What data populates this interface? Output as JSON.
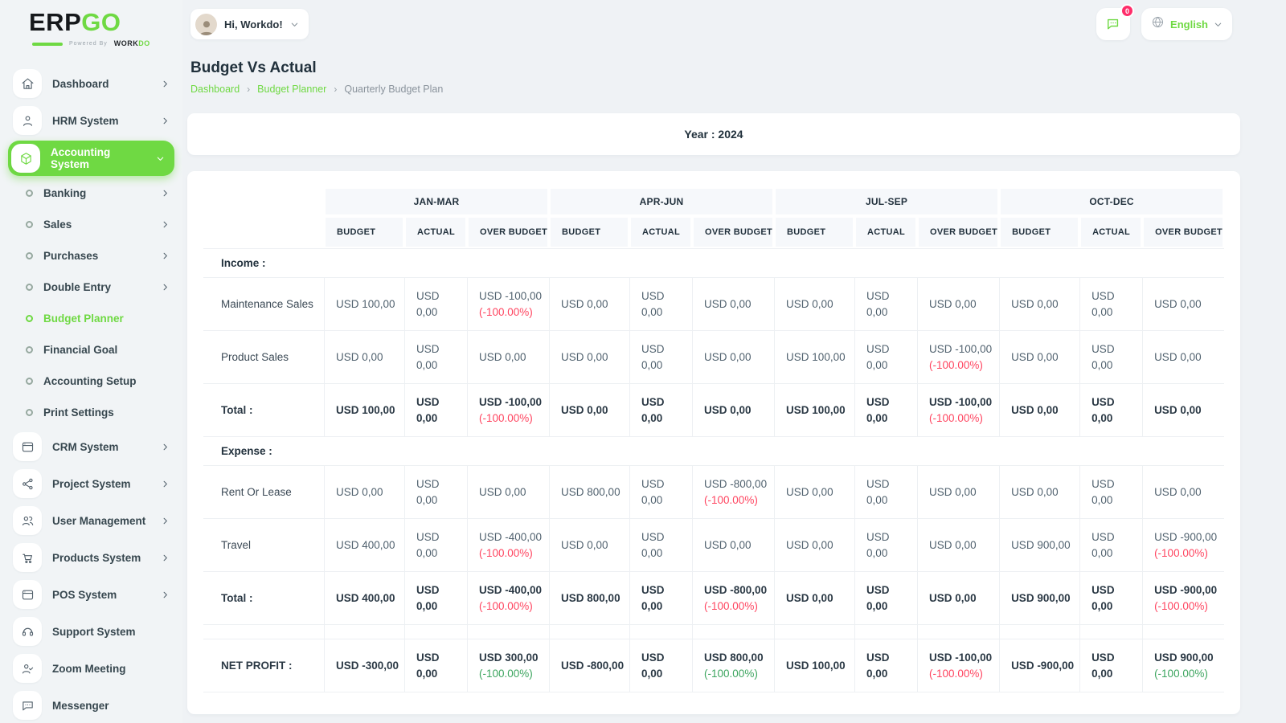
{
  "brand": {
    "logo_left": "ERP",
    "logo_right": "GO",
    "powered_by": "Powered By",
    "workdo_left": "WORK",
    "workdo_right": "DO"
  },
  "topbar": {
    "greeting": "Hi, Workdo!",
    "notification_count": "0",
    "language": "English"
  },
  "page": {
    "title": "Budget Vs Actual",
    "breadcrumb": [
      {
        "label": "Dashboard",
        "link": true
      },
      {
        "label": "Budget Planner",
        "link": true
      },
      {
        "label": "Quarterly Budget Plan",
        "link": false
      }
    ]
  },
  "filter_card": {
    "year_label": "Year : 2024"
  },
  "colors": {
    "accent": "#6fd943",
    "negative": "#ff4560",
    "positive": "#3da55f"
  },
  "sidebar": {
    "items": [
      {
        "label": "Dashboard",
        "icon": "home",
        "chevron": "right"
      },
      {
        "label": "HRM System",
        "icon": "user",
        "chevron": "right"
      },
      {
        "label": "Accounting System",
        "icon": "cube",
        "chevron": "down",
        "active": true
      },
      {
        "label": "Banking",
        "sub": true,
        "chevron": "right"
      },
      {
        "label": "Sales",
        "sub": true,
        "chevron": "right"
      },
      {
        "label": "Purchases",
        "sub": true,
        "chevron": "right"
      },
      {
        "label": "Double Entry",
        "sub": true,
        "chevron": "right"
      },
      {
        "label": "Budget Planner",
        "sub": true,
        "active": true
      },
      {
        "label": "Financial Goal",
        "sub": true
      },
      {
        "label": "Accounting Setup",
        "sub": true
      },
      {
        "label": "Print Settings",
        "sub": true
      },
      {
        "label": "CRM System",
        "icon": "browser",
        "chevron": "right"
      },
      {
        "label": "Project System",
        "icon": "share",
        "chevron": "right"
      },
      {
        "label": "User Management",
        "icon": "users",
        "chevron": "right"
      },
      {
        "label": "Products System",
        "icon": "cart",
        "chevron": "right"
      },
      {
        "label": "POS System",
        "icon": "browser",
        "chevron": "right"
      },
      {
        "label": "Support System",
        "icon": "headset"
      },
      {
        "label": "Zoom Meeting",
        "icon": "usercheck"
      },
      {
        "label": "Messenger",
        "icon": "chat"
      }
    ]
  },
  "budget_table": {
    "quarters": [
      "JAN-MAR",
      "APR-JUN",
      "JUL-SEP",
      "OCT-DEC"
    ],
    "subheaders": [
      "BUDGET",
      "ACTUAL",
      "OVER BUDGET"
    ],
    "sections": [
      {
        "title": "Income :",
        "rows": [
          {
            "label": "Maintenance Sales",
            "bold": false,
            "cells": [
              {
                "v": "USD 100,00"
              },
              {
                "v": "USD 0,00"
              },
              {
                "v": "USD -100,00",
                "pct": "(-100.00%)",
                "pc": "neg"
              },
              {
                "v": "USD 0,00"
              },
              {
                "v": "USD 0,00"
              },
              {
                "v": "USD 0,00"
              },
              {
                "v": "USD 0,00"
              },
              {
                "v": "USD 0,00"
              },
              {
                "v": "USD 0,00"
              },
              {
                "v": "USD 0,00"
              },
              {
                "v": "USD 0,00"
              },
              {
                "v": "USD 0,00"
              }
            ]
          },
          {
            "label": "Product Sales",
            "bold": false,
            "cells": [
              {
                "v": "USD 0,00"
              },
              {
                "v": "USD 0,00"
              },
              {
                "v": "USD 0,00"
              },
              {
                "v": "USD 0,00"
              },
              {
                "v": "USD 0,00"
              },
              {
                "v": "USD 0,00"
              },
              {
                "v": "USD 100,00"
              },
              {
                "v": "USD 0,00"
              },
              {
                "v": "USD -100,00",
                "pct": "(-100.00%)",
                "pc": "neg"
              },
              {
                "v": "USD 0,00"
              },
              {
                "v": "USD 0,00"
              },
              {
                "v": "USD 0,00"
              }
            ]
          },
          {
            "label": "Total :",
            "bold": true,
            "cells": [
              {
                "v": "USD 100,00"
              },
              {
                "v": "USD 0,00"
              },
              {
                "v": "USD -100,00",
                "pct": "(-100.00%)",
                "pc": "neg"
              },
              {
                "v": "USD 0,00"
              },
              {
                "v": "USD 0,00"
              },
              {
                "v": "USD 0,00"
              },
              {
                "v": "USD 100,00"
              },
              {
                "v": "USD 0,00"
              },
              {
                "v": "USD -100,00",
                "pct": "(-100.00%)",
                "pc": "neg"
              },
              {
                "v": "USD 0,00"
              },
              {
                "v": "USD 0,00"
              },
              {
                "v": "USD 0,00"
              }
            ]
          }
        ]
      },
      {
        "title": "Expense :",
        "rows": [
          {
            "label": "Rent Or Lease",
            "bold": false,
            "cells": [
              {
                "v": "USD 0,00"
              },
              {
                "v": "USD 0,00"
              },
              {
                "v": "USD 0,00"
              },
              {
                "v": "USD 800,00"
              },
              {
                "v": "USD 0,00"
              },
              {
                "v": "USD -800,00",
                "pct": "(-100.00%)",
                "pc": "neg"
              },
              {
                "v": "USD 0,00"
              },
              {
                "v": "USD 0,00"
              },
              {
                "v": "USD 0,00"
              },
              {
                "v": "USD 0,00"
              },
              {
                "v": "USD 0,00"
              },
              {
                "v": "USD 0,00"
              }
            ]
          },
          {
            "label": "Travel",
            "bold": false,
            "cells": [
              {
                "v": "USD 400,00"
              },
              {
                "v": "USD 0,00"
              },
              {
                "v": "USD -400,00",
                "pct": "(-100.00%)",
                "pc": "neg"
              },
              {
                "v": "USD 0,00"
              },
              {
                "v": "USD 0,00"
              },
              {
                "v": "USD 0,00"
              },
              {
                "v": "USD 0,00"
              },
              {
                "v": "USD 0,00"
              },
              {
                "v": "USD 0,00"
              },
              {
                "v": "USD 900,00"
              },
              {
                "v": "USD 0,00"
              },
              {
                "v": "USD -900,00",
                "pct": "(-100.00%)",
                "pc": "neg"
              }
            ]
          },
          {
            "label": "Total :",
            "bold": true,
            "cells": [
              {
                "v": "USD 400,00"
              },
              {
                "v": "USD 0,00"
              },
              {
                "v": "USD -400,00",
                "pct": "(-100.00%)",
                "pc": "neg"
              },
              {
                "v": "USD 800,00"
              },
              {
                "v": "USD 0,00"
              },
              {
                "v": "USD -800,00",
                "pct": "(-100.00%)",
                "pc": "neg"
              },
              {
                "v": "USD 0,00"
              },
              {
                "v": "USD 0,00"
              },
              {
                "v": "USD 0,00"
              },
              {
                "v": "USD 900,00"
              },
              {
                "v": "USD 0,00"
              },
              {
                "v": "USD -900,00",
                "pct": "(-100.00%)",
                "pc": "neg"
              }
            ]
          }
        ]
      }
    ],
    "net_profit": {
      "label": "NET PROFIT :",
      "cells": [
        {
          "v": "USD -300,00"
        },
        {
          "v": "USD 0,00"
        },
        {
          "v": "USD 300,00",
          "pct": "(-100.00%)",
          "pc": "pos"
        },
        {
          "v": "USD -800,00"
        },
        {
          "v": "USD 0,00"
        },
        {
          "v": "USD 800,00",
          "pct": "(-100.00%)",
          "pc": "pos"
        },
        {
          "v": "USD 100,00"
        },
        {
          "v": "USD 0,00"
        },
        {
          "v": "USD -100,00",
          "pct": "(-100.00%)",
          "pc": "neg"
        },
        {
          "v": "USD -900,00"
        },
        {
          "v": "USD 0,00"
        },
        {
          "v": "USD 900,00",
          "pct": "(-100.00%)",
          "pc": "pos"
        }
      ]
    }
  }
}
